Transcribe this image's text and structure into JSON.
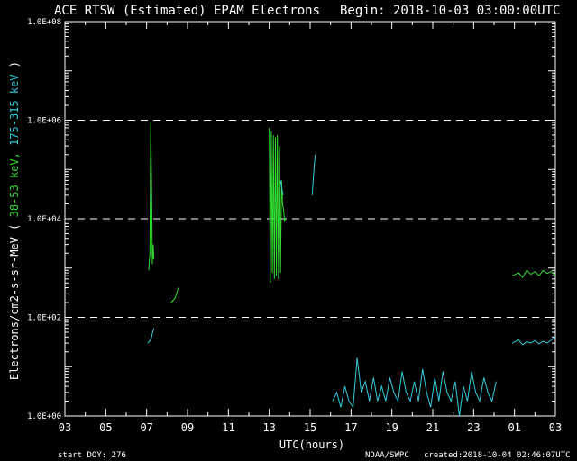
{
  "chart_data": {
    "type": "line",
    "title": "ACE RTSW (Estimated) EPAM Electrons",
    "begin": "Begin: 2018-10-03 03:00:00UTC",
    "xlabel": "UTC(hours)",
    "ylabel_prefix": "Electrons/cm2-s-sr-MeV  ( ",
    "ylabel_series1": "38-53 keV,",
    "ylabel_series2": "175-315 keV",
    "ylabel_suffix": " )",
    "yscale": "log",
    "ylim": [
      1,
      100000000
    ],
    "xlim": [
      0,
      24
    ],
    "x_unit": "hours since 2018-10-03 03:00 UTC",
    "x_ticks": [
      "03",
      "05",
      "07",
      "09",
      "11",
      "13",
      "15",
      "17",
      "19",
      "21",
      "23",
      "01",
      "03"
    ],
    "y_ticks": [
      "1.0E+00",
      "1.0E+02",
      "1.0E+04",
      "1.0E+06",
      "1.0E+08"
    ],
    "reference_lines": [
      100,
      10000,
      1000000
    ],
    "footer_left": "start DOY:  276",
    "footer_center": "NOAA/SWPC",
    "footer_right": "created:2018-10-04 02:46:07UTC",
    "colors": {
      "series1": "#33dd33",
      "series2": "#33ccdd",
      "axes": "#ffffff"
    },
    "series": [
      {
        "name": "38-53 keV",
        "color": "#33dd33",
        "segments": [
          [
            [
              4.1,
              900
            ],
            [
              4.16,
              2000
            ],
            [
              4.2,
              900000
            ],
            [
              4.24,
              50000
            ],
            [
              4.28,
              1200
            ],
            [
              4.32,
              3000
            ],
            [
              4.35,
              1500
            ]
          ],
          [
            [
              5.2,
              200
            ],
            [
              5.4,
              250
            ],
            [
              5.55,
              400
            ]
          ],
          [
            [
              10.0,
              700000
            ],
            [
              10.05,
              500
            ],
            [
              10.1,
              600000
            ],
            [
              10.15,
              800
            ],
            [
              10.2,
              500000
            ],
            [
              10.25,
              600
            ],
            [
              10.3,
              450000
            ],
            [
              10.35,
              700
            ],
            [
              10.4,
              500000
            ],
            [
              10.45,
              600
            ],
            [
              10.5,
              300000
            ],
            [
              10.55,
              800
            ],
            [
              10.6,
              60000
            ],
            [
              10.65,
              20000
            ],
            [
              10.7,
              15000
            ],
            [
              10.75,
              9000
            ],
            [
              10.8,
              10000
            ]
          ],
          [
            [
              21.9,
              700
            ],
            [
              22.2,
              800
            ],
            [
              22.4,
              650
            ],
            [
              22.6,
              900
            ],
            [
              22.8,
              750
            ],
            [
              23.0,
              850
            ],
            [
              23.2,
              700
            ],
            [
              23.4,
              900
            ],
            [
              23.6,
              780
            ],
            [
              23.8,
              850
            ],
            [
              24.0,
              700
            ]
          ]
        ]
      },
      {
        "name": "175-315 keV",
        "color": "#33ccdd",
        "segments": [
          [
            [
              4.05,
              30
            ],
            [
              4.2,
              35
            ],
            [
              4.35,
              60
            ]
          ],
          [
            [
              10.55,
              60000
            ],
            [
              10.62,
              40000
            ],
            [
              10.68,
              30000
            ]
          ],
          [
            [
              12.1,
              30000
            ],
            [
              12.2,
              120000
            ],
            [
              12.25,
              200000
            ]
          ],
          [
            [
              13.1,
              2
            ],
            [
              13.3,
              3
            ],
            [
              13.5,
              1.5
            ],
            [
              13.7,
              4
            ],
            [
              13.9,
              2
            ],
            [
              14.1,
              1.5
            ],
            [
              14.3,
              15
            ],
            [
              14.5,
              3
            ],
            [
              14.7,
              5
            ],
            [
              14.9,
              2
            ],
            [
              15.1,
              6
            ],
            [
              15.3,
              2
            ],
            [
              15.5,
              4
            ],
            [
              15.7,
              2
            ],
            [
              15.9,
              6
            ],
            [
              16.1,
              3
            ],
            [
              16.3,
              2
            ],
            [
              16.5,
              8
            ],
            [
              16.7,
              3
            ],
            [
              16.9,
              2
            ],
            [
              17.1,
              5
            ],
            [
              17.3,
              2
            ],
            [
              17.5,
              9
            ],
            [
              17.7,
              3
            ],
            [
              17.9,
              1.5
            ],
            [
              18.1,
              6
            ],
            [
              18.3,
              2
            ],
            [
              18.5,
              8
            ],
            [
              18.7,
              3
            ],
            [
              18.9,
              2
            ],
            [
              19.1,
              5
            ],
            [
              19.3,
              1
            ],
            [
              19.5,
              4
            ],
            [
              19.7,
              2
            ],
            [
              19.9,
              8
            ],
            [
              20.1,
              3
            ],
            [
              20.3,
              2
            ],
            [
              20.5,
              6
            ],
            [
              20.7,
              3
            ],
            [
              20.9,
              2
            ],
            [
              21.1,
              5
            ]
          ],
          [
            [
              21.9,
              30
            ],
            [
              22.2,
              35
            ],
            [
              22.4,
              28
            ],
            [
              22.6,
              32
            ],
            [
              22.8,
              30
            ],
            [
              23.0,
              34
            ],
            [
              23.2,
              29
            ],
            [
              23.4,
              33
            ],
            [
              23.6,
              30
            ],
            [
              23.8,
              35
            ],
            [
              24.0,
              40
            ]
          ]
        ]
      }
    ]
  }
}
